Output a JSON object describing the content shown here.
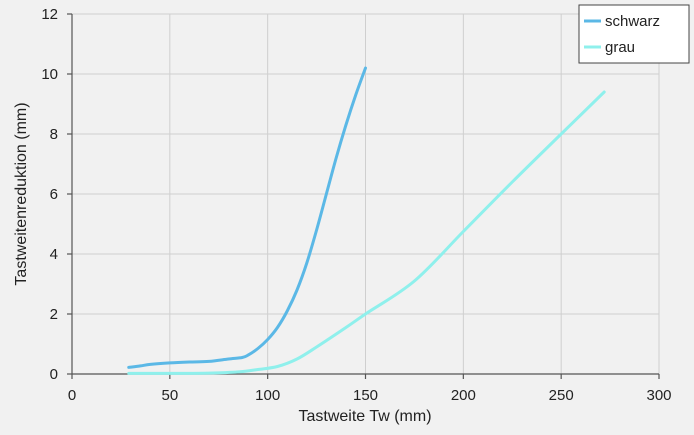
{
  "chart_data": {
    "type": "line",
    "xlabel": "Tastweite Tw (mm)",
    "ylabel": "Tastweitenreduktion (mm)",
    "xlim": [
      0,
      300
    ],
    "ylim": [
      0,
      12
    ],
    "x_ticks": [
      0,
      50,
      100,
      150,
      200,
      250,
      300
    ],
    "y_ticks": [
      0,
      2,
      4,
      6,
      8,
      10,
      12
    ],
    "grid": true,
    "legend_position": "top-right",
    "series": [
      {
        "name": "schwarz",
        "color": "#5bb8e6",
        "points": [
          [
            29,
            0.22
          ],
          [
            35,
            0.27
          ],
          [
            40,
            0.32
          ],
          [
            50,
            0.37
          ],
          [
            60,
            0.4
          ],
          [
            70,
            0.42
          ],
          [
            80,
            0.5
          ],
          [
            87,
            0.55
          ],
          [
            90,
            0.63
          ],
          [
            95,
            0.85
          ],
          [
            100,
            1.15
          ],
          [
            105,
            1.55
          ],
          [
            110,
            2.1
          ],
          [
            115,
            2.8
          ],
          [
            120,
            3.7
          ],
          [
            125,
            4.8
          ],
          [
            130,
            6.0
          ],
          [
            135,
            7.2
          ],
          [
            140,
            8.3
          ],
          [
            145,
            9.3
          ],
          [
            150,
            10.2
          ]
        ]
      },
      {
        "name": "grau",
        "color": "#8ff0ec",
        "points": [
          [
            29,
            0.02
          ],
          [
            50,
            0.02
          ],
          [
            70,
            0.03
          ],
          [
            85,
            0.07
          ],
          [
            95,
            0.15
          ],
          [
            105,
            0.25
          ],
          [
            115,
            0.5
          ],
          [
            125,
            0.9
          ],
          [
            140,
            1.55
          ],
          [
            150,
            2.0
          ],
          [
            175,
            3.1
          ],
          [
            200,
            4.75
          ],
          [
            225,
            6.4
          ],
          [
            250,
            8.0
          ],
          [
            272,
            9.4
          ]
        ]
      }
    ]
  }
}
